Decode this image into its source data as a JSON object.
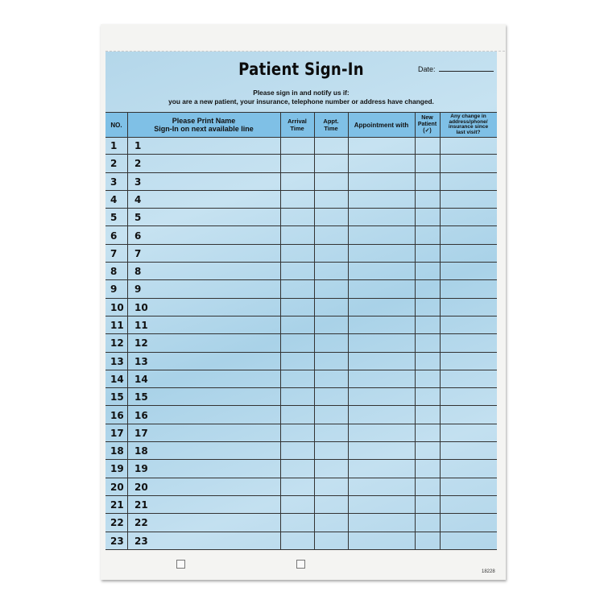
{
  "form": {
    "title": "Patient Sign-In",
    "date_label": "Date:",
    "notice_line1": "Please sign in and notify us if:",
    "notice_line2": "you are a new patient, your insurance, telephone number or address have changed.",
    "form_number": "18228",
    "background_color": "#b8daed",
    "header_color": "#7fc0e6"
  },
  "table": {
    "headers": {
      "no": "NO.",
      "name_line1": "Please Print Name",
      "name_line2": "Sign-In on next available line",
      "arrival_line1": "Arrival",
      "arrival_line2": "Time",
      "appt_line1": "Appt.",
      "appt_line2": "Time",
      "appointment_with": "Appointment with",
      "new_line1": "New",
      "new_line2": "Patient",
      "new_line3": "(✓)",
      "change_line1": "Any change in",
      "change_line2": "address/phone/",
      "change_line3": "insurance since",
      "change_line4": "last visit?"
    },
    "rows": [
      "1",
      "2",
      "3",
      "4",
      "5",
      "6",
      "7",
      "8",
      "9",
      "10",
      "11",
      "12",
      "13",
      "14",
      "15",
      "16",
      "17",
      "18",
      "19",
      "20",
      "21",
      "22",
      "23"
    ]
  }
}
